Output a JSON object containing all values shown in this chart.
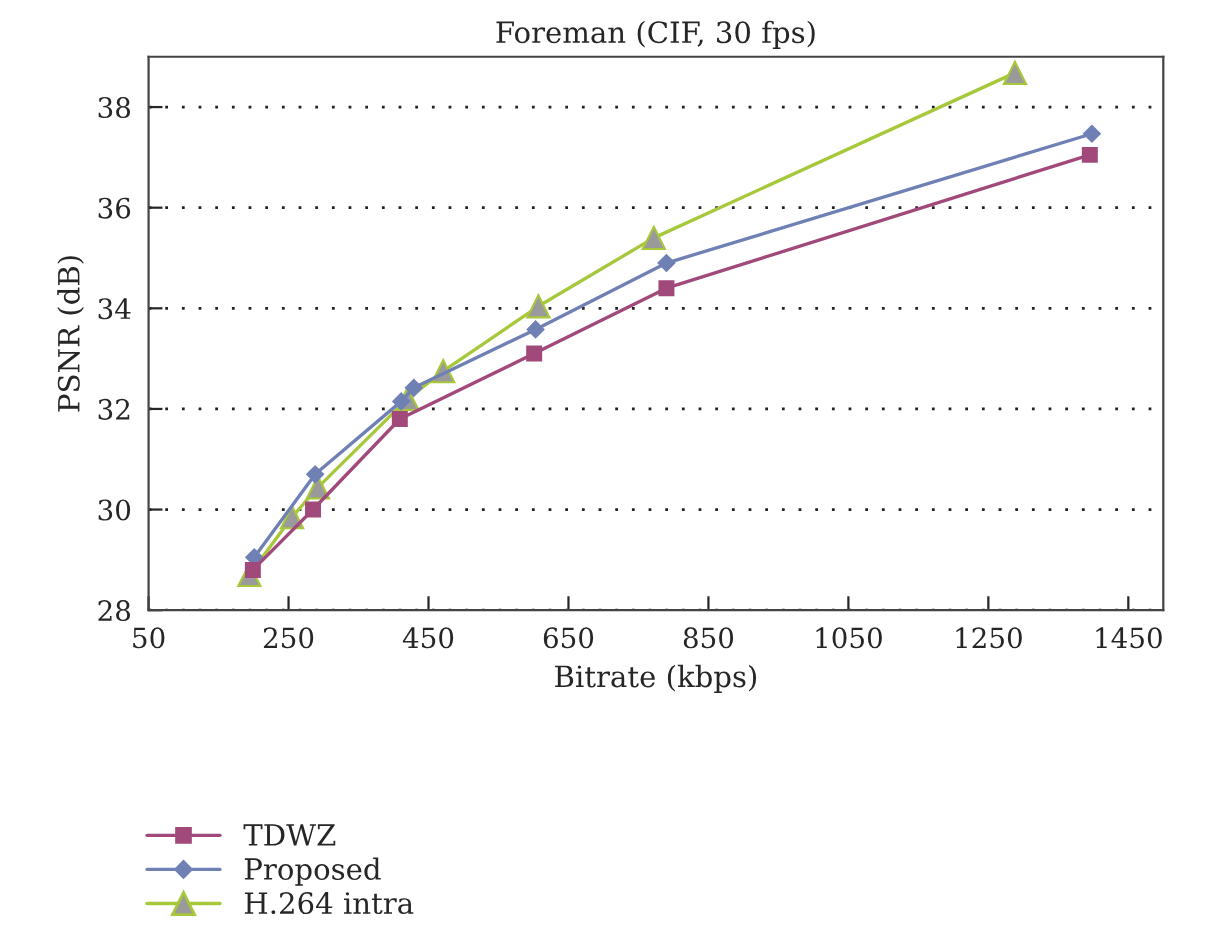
{
  "chart_data": {
    "type": "line",
    "title": "Foreman (CIF, 30 fps)",
    "xlabel": "Bitrate (kbps)",
    "ylabel": "PSNR (dB)",
    "xlim": [
      50,
      1500
    ],
    "xticks": [
      50,
      250,
      450,
      650,
      850,
      1050,
      1250,
      1450
    ],
    "ylim": [
      28,
      39
    ],
    "yticks": [
      28,
      30,
      32,
      34,
      36,
      38
    ],
    "grid": "y",
    "legend": "bottom",
    "series": [
      {
        "name": "TDWZ",
        "color": "#a0497a",
        "marker": "square",
        "x": [
          199,
          285,
          409,
          601,
          790,
          1395
        ],
        "values": [
          28.8,
          30.0,
          31.8,
          33.1,
          34.4,
          37.05
        ]
      },
      {
        "name": "Proposed",
        "color": "#6f80b5",
        "marker": "diamond",
        "x": [
          201,
          288,
          411,
          429,
          603,
          790,
          1398
        ],
        "values": [
          29.05,
          30.7,
          32.15,
          32.42,
          33.58,
          34.9,
          37.47
        ]
      },
      {
        "name": "H.264 intra",
        "color": "#a8c83c",
        "marker": "triangle",
        "x": [
          194,
          255,
          292,
          420,
          471,
          607,
          772,
          1288
        ],
        "values": [
          28.7,
          29.85,
          30.44,
          32.2,
          32.75,
          34.04,
          35.4,
          38.68
        ]
      }
    ]
  }
}
